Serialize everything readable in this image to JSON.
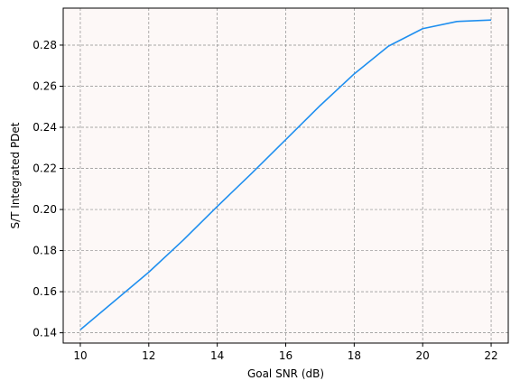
{
  "chart_data": {
    "type": "line",
    "title": "",
    "xlabel": "Goal SNR (dB)",
    "ylabel": "S/T Integrated PDet",
    "xlim": [
      9.5,
      22.5
    ],
    "ylim": [
      0.135,
      0.298
    ],
    "xticks": [
      10,
      12,
      14,
      16,
      18,
      20,
      22
    ],
    "yticks": [
      0.14,
      0.16,
      0.18,
      0.2,
      0.22,
      0.24,
      0.26,
      0.28
    ],
    "xtick_labels": [
      "10",
      "12",
      "14",
      "16",
      "18",
      "20",
      "22"
    ],
    "ytick_labels": [
      "0.14",
      "0.16",
      "0.18",
      "0.20",
      "0.22",
      "0.24",
      "0.26",
      "0.28"
    ],
    "grid": true,
    "series": [
      {
        "x": [
          10,
          11,
          12,
          13,
          14,
          15,
          16,
          17,
          18,
          19,
          20,
          21,
          22
        ],
        "y": [
          0.1415,
          0.1555,
          0.1695,
          0.185,
          0.2015,
          0.2175,
          0.234,
          0.2505,
          0.266,
          0.2795,
          0.288,
          0.2915,
          0.2922
        ],
        "color": "#1f8fef"
      }
    ],
    "colors": {
      "plot_background": "#fdf8f7",
      "grid": "#8c8c8c",
      "line": "#1f8fef"
    }
  }
}
